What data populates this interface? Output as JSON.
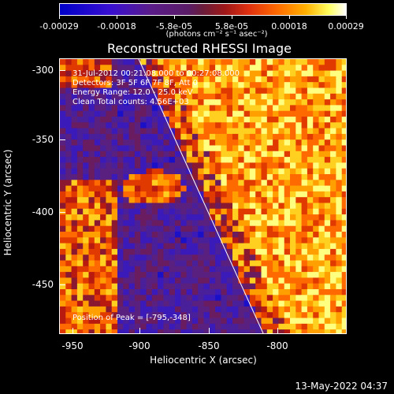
{
  "colorbar": {
    "ticks": [
      "-0.00029",
      "-0.00018",
      "-5.8e-05",
      "5.8e-05",
      "0.00018",
      "0.00029"
    ],
    "unit_label": "(photons cm⁻² s⁻¹ asec⁻²)"
  },
  "title": "Reconstructed RHESSI Image",
  "info": {
    "line1": "31-Jul-2012 00:21:08.000 to 00:27:08.000",
    "line2": "Detectors: 3F 5F 6F 7F 8F, Att 0",
    "line3": "Energy Range: 12.0 - 25.0 keV",
    "line4": "Clean     Total counts: 4.56E+03",
    "peak": "Position of Peak = [-795,-348]"
  },
  "axes": {
    "ylabel": "Heliocentric Y (arcsec)",
    "xlabel": "Heliocentric X (arcsec)",
    "yticks": [
      "-300",
      "-350",
      "-400",
      "-450"
    ],
    "xticks": [
      "-950",
      "-900",
      "-850",
      "-800"
    ]
  },
  "footer": {
    "timestamp": "13-May-2022 04:37"
  }
}
